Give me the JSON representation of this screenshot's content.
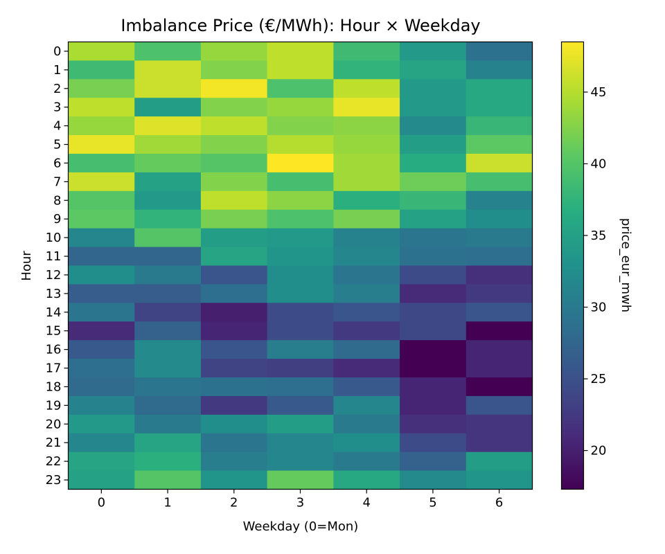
{
  "chart_data": {
    "type": "heatmap",
    "title": "Imbalance Price (€/MWh): Hour × Weekday",
    "xlabel": "Weekday (0=Mon)",
    "ylabel": "Hour",
    "colorbar_label": "price_eur_mwh",
    "colormap": "viridis",
    "x_categories": [
      "0",
      "1",
      "2",
      "3",
      "4",
      "5",
      "6"
    ],
    "y_categories": [
      "0",
      "1",
      "2",
      "3",
      "4",
      "5",
      "6",
      "7",
      "8",
      "9",
      "10",
      "11",
      "12",
      "13",
      "14",
      "15",
      "16",
      "17",
      "18",
      "19",
      "20",
      "21",
      "22",
      "23"
    ],
    "color_range": [
      17.3,
      48.5
    ],
    "colorbar_ticks": [
      20,
      25,
      30,
      35,
      40,
      45
    ],
    "values": [
      [
        44.5,
        39.5,
        43.5,
        45.5,
        38.5,
        34.0,
        29.0
      ],
      [
        38.5,
        46.0,
        42.5,
        45.5,
        37.5,
        35.5,
        31.0
      ],
      [
        42.0,
        46.0,
        48.0,
        39.5,
        45.5,
        34.0,
        36.0
      ],
      [
        45.5,
        34.5,
        42.5,
        43.5,
        47.5,
        34.0,
        36.0
      ],
      [
        43.5,
        47.0,
        45.5,
        42.5,
        43.0,
        32.0,
        38.0
      ],
      [
        47.5,
        44.0,
        42.5,
        45.0,
        43.5,
        34.5,
        40.5
      ],
      [
        39.0,
        41.0,
        40.0,
        48.5,
        44.0,
        36.5,
        46.0
      ],
      [
        46.0,
        35.0,
        42.5,
        39.0,
        44.0,
        41.5,
        39.0
      ],
      [
        40.0,
        34.0,
        45.5,
        43.0,
        37.0,
        38.0,
        31.0
      ],
      [
        40.5,
        37.5,
        42.0,
        39.5,
        42.0,
        35.0,
        32.5
      ],
      [
        31.5,
        40.0,
        34.5,
        34.0,
        31.0,
        29.5,
        30.0
      ],
      [
        27.5,
        27.5,
        35.5,
        33.5,
        31.5,
        29.0,
        28.5
      ],
      [
        32.5,
        30.0,
        25.5,
        32.5,
        29.5,
        24.5,
        21.5
      ],
      [
        26.5,
        26.5,
        28.5,
        32.5,
        30.5,
        21.0,
        22.5
      ],
      [
        29.5,
        23.5,
        20.0,
        24.5,
        25.5,
        24.0,
        25.5
      ],
      [
        21.0,
        27.0,
        20.5,
        24.5,
        22.5,
        24.0,
        17.3
      ],
      [
        26.0,
        32.0,
        25.5,
        30.5,
        28.0,
        17.3,
        20.5
      ],
      [
        28.5,
        32.0,
        23.5,
        23.0,
        21.0,
        17.3,
        20.5
      ],
      [
        28.0,
        29.5,
        29.0,
        28.5,
        26.0,
        20.5,
        17.3
      ],
      [
        31.0,
        28.0,
        22.5,
        26.0,
        31.5,
        20.5,
        25.5
      ],
      [
        34.0,
        30.0,
        32.5,
        34.5,
        30.0,
        21.5,
        22.0
      ],
      [
        31.5,
        35.5,
        29.5,
        31.5,
        32.5,
        24.5,
        22.0
      ],
      [
        35.5,
        37.0,
        30.5,
        31.5,
        30.0,
        27.0,
        34.5
      ],
      [
        35.0,
        40.0,
        33.5,
        41.0,
        36.0,
        32.0,
        33.5
      ]
    ]
  }
}
